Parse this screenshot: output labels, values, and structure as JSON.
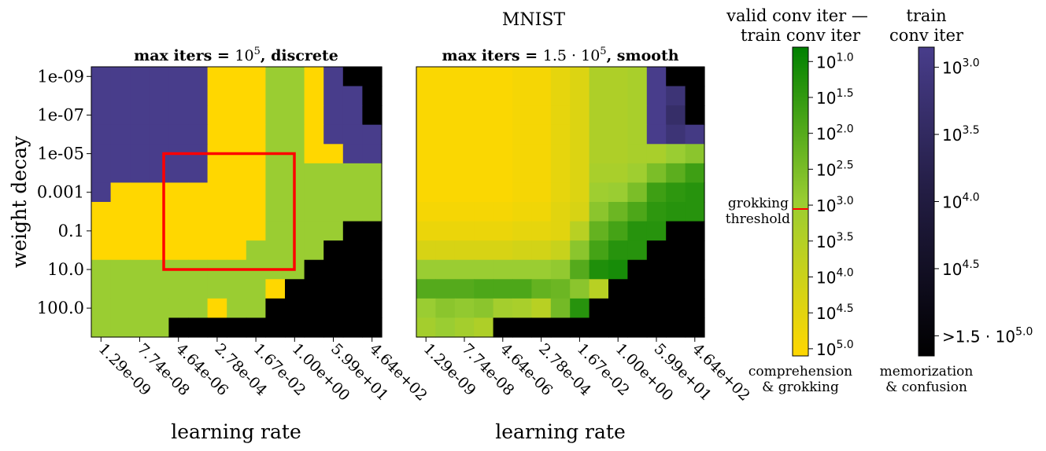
{
  "figure": {
    "suptitle": "MNIST",
    "colors": {
      "memorization": "#483D8B",
      "comprehension": "#FFD700",
      "grokking": "#9ACD32",
      "confusion": "#000000",
      "grok_threshold_line": "#ff0000",
      "highlight_box": "#ff0000"
    }
  },
  "chart_data": [
    {
      "type": "heatmap",
      "panel": "discrete",
      "title_prefix": "max iters = ",
      "title_base": "10",
      "title_sup": "5",
      "title_suffix": ", discrete",
      "xlabel": "learning rate",
      "ylabel": "weight decay",
      "x_ticklabels": [
        "1.29e-09",
        "7.74e-08",
        "4.64e-06",
        "2.78e-04",
        "1.67e-02",
        "1.00e+00",
        "5.99e+01",
        "4.64e+02"
      ],
      "y_ticklabels": [
        "1e-09",
        "1e-07",
        "1e-05",
        "0.001",
        "0.1",
        "10.0",
        "100.0"
      ],
      "grid_rows": 14,
      "grid_cols": 15,
      "legend": {
        "M": "memorization",
        "C": "comprehension",
        "G": "grokking",
        "X": "confusion"
      },
      "cells": [
        "MMMMMMCCCGGCMXX",
        "MMMMMMCCCGGCMMX",
        "MMMMMMCCCGGCMMX",
        "MMMMMMCCCGGCMMM",
        "MMMMMMCCCGGCCMM",
        "MMMMMMCCCGGGGGG",
        "MCCCCCCCCGGGGGG",
        "CCCCCCCCCGGGGGG",
        "CCCCCCCCCGGGGXX",
        "CCCCCCCCGGGGXXX",
        "GGGGGGGGGGGXXXX",
        "GGGGGGGGGGGXXXX",
        "GGGGGGCGGXXXXXX",
        "GGGGXXXXXXXXXXX"
      ],
      "overrides": [
        {
          "row": 12,
          "col": 6,
          "class": "C"
        },
        {
          "row": 11,
          "col": 9,
          "class": "C"
        },
        {
          "row": 11,
          "col": 10,
          "class": "X"
        }
      ],
      "highlight_box": {
        "x_tick_from": "4.64e-06",
        "x_tick_to": "1.00e+00",
        "y_tick_from": "1e-05",
        "y_tick_to": "10.0"
      }
    },
    {
      "type": "heatmap",
      "panel": "smooth",
      "title_prefix": "max iters = ",
      "title_base": "1.5 · 10",
      "title_sup": "5",
      "title_suffix": ", smooth",
      "xlabel": "learning rate",
      "x_ticklabels": [
        "1.29e-09",
        "7.74e-08",
        "4.64e-06",
        "2.78e-04",
        "1.67e-02",
        "1.00e+00",
        "5.99e+01",
        "4.64e+02"
      ],
      "grid_rows": 14,
      "grid_cols": 15,
      "note": "value = log10 of (valid conv iter - train conv iter) for comprehension/grokking cells; memorization cells use train conv iter; X = confusion (>1.5·10^5)",
      "log10_values": [
        [
          4.9,
          4.9,
          4.9,
          4.9,
          4.9,
          4.8,
          4.8,
          4.5,
          4.3,
          3.4,
          3.4,
          3.3,
          "M3.0",
          "X",
          "X"
        ],
        [
          4.9,
          4.9,
          4.9,
          4.9,
          4.9,
          4.8,
          4.8,
          4.5,
          4.3,
          3.4,
          3.4,
          3.3,
          "M3.0",
          "M3.3",
          "X"
        ],
        [
          4.9,
          4.9,
          4.9,
          4.9,
          4.9,
          4.8,
          4.8,
          4.5,
          4.3,
          3.4,
          3.4,
          3.3,
          "M3.0",
          "M3.5",
          "X"
        ],
        [
          4.9,
          4.9,
          4.9,
          4.9,
          4.9,
          4.8,
          4.8,
          4.5,
          4.3,
          3.4,
          3.4,
          3.3,
          "M3.0",
          "M3.3",
          "M3.1"
        ],
        [
          4.9,
          4.9,
          4.9,
          4.9,
          4.9,
          4.8,
          4.8,
          4.5,
          4.3,
          3.4,
          3.4,
          3.3,
          3.3,
          3.0,
          2.8
        ],
        [
          4.9,
          4.9,
          4.9,
          4.9,
          4.9,
          4.8,
          4.8,
          4.5,
          4.3,
          3.3,
          3.3,
          3.1,
          2.6,
          2.2,
          1.8
        ],
        [
          4.9,
          4.9,
          4.9,
          4.9,
          4.9,
          4.8,
          4.8,
          4.5,
          4.3,
          3.1,
          3.0,
          2.6,
          1.8,
          1.6,
          1.5
        ],
        [
          4.8,
          4.8,
          4.8,
          4.8,
          4.8,
          4.7,
          4.7,
          4.4,
          4.2,
          2.8,
          2.4,
          2.0,
          1.6,
          1.5,
          1.5
        ],
        [
          4.6,
          4.6,
          4.6,
          4.6,
          4.6,
          4.5,
          4.5,
          4.4,
          3.6,
          2.3,
          1.9,
          1.5,
          1.5,
          "X",
          "X"
        ],
        [
          4.2,
          4.2,
          4.2,
          4.2,
          4.2,
          4.1,
          4.1,
          3.9,
          2.8,
          1.9,
          1.5,
          1.5,
          "X",
          "X",
          "X"
        ],
        [
          3.0,
          3.0,
          3.0,
          3.0,
          3.0,
          3.0,
          3.0,
          2.9,
          2.1,
          1.4,
          1.3,
          "X",
          "X",
          "X",
          "X"
        ],
        [
          2.1,
          2.1,
          2.1,
          2.0,
          2.0,
          2.0,
          2.3,
          2.4,
          2.8,
          3.6,
          "X",
          "X",
          "X",
          "X",
          "X"
        ],
        [
          3.0,
          2.8,
          2.9,
          2.8,
          3.2,
          3.3,
          3.6,
          2.5,
          1.5,
          "X",
          "X",
          "X",
          "X",
          "X",
          "X"
        ],
        [
          3.2,
          3.0,
          3.2,
          3.4,
          "X",
          "X",
          "X",
          "X",
          "X",
          "X",
          "X",
          "X",
          "X",
          "X",
          "X"
        ]
      ]
    }
  ],
  "colorbars": {
    "grokking": {
      "title_line1": "valid conv iter —",
      "title_line2": "train conv iter",
      "ticks": [
        {
          "base": "10",
          "exp": "1.0",
          "value": 1.0
        },
        {
          "base": "10",
          "exp": "1.5",
          "value": 1.5
        },
        {
          "base": "10",
          "exp": "2.0",
          "value": 2.0
        },
        {
          "base": "10",
          "exp": "2.5",
          "value": 2.5
        },
        {
          "base": "10",
          "exp": "3.0",
          "value": 3.0
        },
        {
          "base": "10",
          "exp": "3.5",
          "value": 3.5
        },
        {
          "base": "10",
          "exp": "4.0",
          "value": 4.0
        },
        {
          "base": "10",
          "exp": "4.5",
          "value": 4.5
        },
        {
          "base": "10",
          "exp": "5.0",
          "value": 5.0
        }
      ],
      "range": [
        0.8,
        5.1
      ],
      "threshold_label_line1": "grokking",
      "threshold_label_line2": "threshold",
      "threshold_value": 3.0,
      "bottom_label_line1": "comprehension",
      "bottom_label_line2": "& grokking"
    },
    "memorization": {
      "title_line1": "train",
      "title_line2": "conv iter",
      "ticks": [
        {
          "base": "10",
          "exp": "3.0",
          "value": 3.0
        },
        {
          "base": "10",
          "exp": "3.5",
          "value": 3.5
        },
        {
          "base": "10",
          "exp": "4.0",
          "value": 4.0
        },
        {
          "base": "10",
          "exp": "4.5",
          "value": 4.5
        },
        {
          "base": ">1.5 · 10",
          "exp": "5.0",
          "value": 5.0
        }
      ],
      "range": [
        2.85,
        5.15
      ],
      "bottom_label_line1": "memorization",
      "bottom_label_line2": "& confusion"
    }
  }
}
